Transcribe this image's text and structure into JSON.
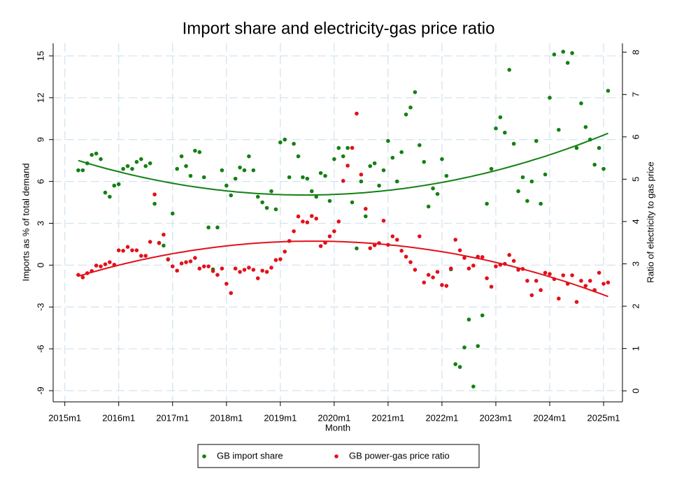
{
  "chart_data": {
    "type": "scatter",
    "title": "Import share and electricity-gas price ratio",
    "x_label": "Month",
    "y_label": "Imports as % of total demand",
    "y2_label": "Ratio of electricity to gas price",
    "grid": true,
    "fit": "quadratic",
    "legend": "bottom",
    "xlim": [
      657.4,
      784.2
    ],
    "xticks": [
      {
        "value": 660,
        "label": "2015m1"
      },
      {
        "value": 672,
        "label": "2016m1"
      },
      {
        "value": 684,
        "label": "2017m1"
      },
      {
        "value": 696,
        "label": "2018m1"
      },
      {
        "value": 708,
        "label": "2019m1"
      },
      {
        "value": 720,
        "label": "2020m1"
      },
      {
        "value": 732,
        "label": "2021m1"
      },
      {
        "value": 744,
        "label": "2022m1"
      },
      {
        "value": 756,
        "label": "2023m1"
      },
      {
        "value": 768,
        "label": "2024m1"
      },
      {
        "value": 780,
        "label": "2025m1"
      }
    ],
    "ylim": [
      -9.8,
      15.9
    ],
    "yticks": [
      15,
      12,
      9,
      6,
      3,
      0,
      -3,
      -6,
      -9
    ],
    "y2lim": [
      -0.26,
      8.21
    ],
    "y2ticks": [
      0,
      1,
      2,
      3,
      4,
      5,
      6,
      7,
      8
    ],
    "x": [
      663,
      664,
      665,
      666,
      667,
      668,
      669,
      670,
      671,
      672,
      673,
      674,
      675,
      676,
      677,
      678,
      679,
      680,
      681,
      682,
      683,
      684,
      685,
      686,
      687,
      688,
      689,
      690,
      691,
      692,
      693,
      694,
      695,
      696,
      697,
      698,
      699,
      700,
      701,
      702,
      703,
      704,
      705,
      706,
      707,
      708,
      709,
      710,
      711,
      712,
      713,
      714,
      715,
      716,
      717,
      718,
      719,
      720,
      721,
      722,
      723,
      724,
      725,
      726,
      727,
      728,
      729,
      730,
      731,
      732,
      733,
      734,
      735,
      736,
      737,
      738,
      739,
      740,
      741,
      742,
      743,
      744,
      745,
      746,
      747,
      748,
      749,
      750,
      751,
      752,
      753,
      754,
      755,
      756,
      757,
      758,
      759,
      760,
      761,
      762,
      763,
      764,
      765,
      766,
      767,
      768,
      769,
      770,
      771,
      772,
      773,
      774,
      775,
      776,
      777,
      778,
      779,
      780,
      781
    ],
    "series": [
      {
        "name": "GB import share",
        "color": "#138013",
        "axis": "y",
        "values": [
          6.8,
          6.8,
          7.3,
          7.9,
          8.0,
          7.6,
          5.2,
          4.9,
          5.7,
          5.8,
          6.9,
          7.1,
          6.9,
          7.4,
          7.6,
          7.1,
          7.3,
          4.4,
          1.6,
          1.4,
          0.4,
          3.7,
          6.9,
          7.8,
          7.1,
          6.4,
          8.2,
          8.1,
          6.3,
          2.7,
          -0.3,
          2.7,
          6.8,
          5.7,
          5.0,
          6.2,
          7.0,
          6.8,
          7.8,
          6.8,
          4.9,
          4.5,
          4.1,
          5.3,
          4.0,
          8.8,
          9.0,
          6.3,
          8.7,
          7.8,
          6.3,
          6.2,
          5.3,
          4.9,
          6.6,
          6.4,
          4.6,
          7.6,
          8.4,
          7.8,
          8.4,
          4.5,
          1.2,
          6.0,
          3.5,
          7.1,
          7.3,
          5.7,
          6.8,
          8.9,
          7.7,
          6.0,
          8.1,
          10.8,
          11.3,
          12.4,
          8.6,
          7.4,
          4.2,
          5.5,
          5.1,
          7.6,
          6.4,
          -0.3,
          -7.1,
          -7.3,
          -5.9,
          -3.9,
          -8.7,
          -5.8,
          -3.6,
          4.4,
          6.9,
          9.8,
          10.6,
          9.5,
          14.0,
          8.7,
          5.3,
          6.3,
          4.6,
          6.0,
          8.9,
          4.4,
          6.5,
          12.0,
          15.1,
          9.7,
          15.3,
          14.5,
          15.2,
          8.4,
          11.6,
          9.9,
          9.0,
          7.2,
          8.4,
          6.9,
          12.5
        ]
      },
      {
        "name": "GB power-gas price ratio",
        "color": "#e3101a",
        "axis": "y2",
        "values": [
          2.74,
          2.68,
          2.78,
          2.83,
          2.96,
          2.94,
          2.99,
          3.04,
          2.98,
          3.32,
          3.31,
          3.4,
          3.32,
          3.32,
          3.19,
          3.19,
          3.52,
          4.64,
          3.49,
          3.69,
          3.11,
          2.94,
          2.84,
          3.01,
          3.04,
          3.06,
          3.14,
          2.89,
          2.94,
          2.94,
          2.83,
          2.74,
          2.89,
          2.53,
          2.31,
          2.89,
          2.81,
          2.86,
          2.91,
          2.86,
          2.66,
          2.84,
          2.81,
          2.91,
          3.09,
          3.11,
          3.29,
          3.54,
          3.77,
          4.12,
          4.0,
          3.98,
          4.13,
          4.07,
          3.42,
          3.5,
          3.65,
          3.77,
          4.0,
          4.96,
          5.32,
          5.74,
          6.55,
          5.11,
          4.3,
          3.37,
          3.44,
          3.49,
          4.02,
          3.45,
          3.65,
          3.57,
          3.31,
          3.17,
          3.04,
          2.86,
          3.65,
          2.56,
          2.74,
          2.68,
          2.81,
          2.5,
          2.48,
          2.89,
          3.57,
          3.32,
          3.14,
          2.89,
          2.96,
          3.17,
          3.16,
          2.66,
          2.46,
          2.94,
          2.98,
          3.0,
          3.21,
          3.07,
          2.86,
          2.88,
          2.6,
          2.26,
          2.6,
          2.38,
          2.79,
          2.76,
          2.64,
          2.18,
          2.73,
          2.53,
          2.73,
          2.1,
          2.6,
          2.48,
          2.6,
          2.38,
          2.79,
          2.53,
          2.56
        ]
      }
    ]
  }
}
